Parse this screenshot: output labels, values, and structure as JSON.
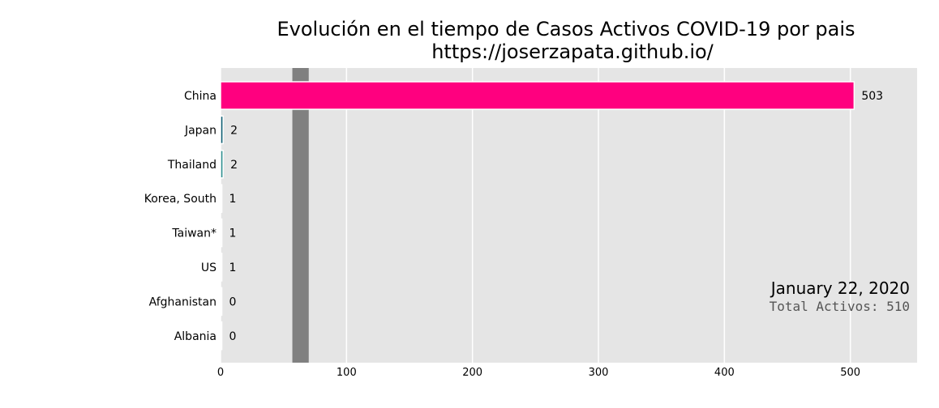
{
  "chart_data": {
    "type": "bar",
    "orientation": "horizontal",
    "title_line1": "Evolución en el tiempo de Casos Activos COVID-19 por pais",
    "title_line2": "https://joserzapata.github.io/",
    "categories": [
      "China",
      "Japan",
      "Thailand",
      "Korea, South",
      "Taiwan*",
      "US",
      "Afghanistan",
      "Albania"
    ],
    "values": [
      503,
      2,
      2,
      1,
      1,
      1,
      0,
      0
    ],
    "value_labels": [
      "503",
      "2",
      "2",
      "1",
      "1",
      "1",
      "0",
      "0"
    ],
    "bar_colors": [
      "#ff007f",
      "#0f5e73",
      "#2f8f8f",
      "#e6e6e6",
      "#e6e6e6",
      "#e6e6e6",
      "#e6e6e6",
      "#e6e6e6"
    ],
    "xlim": [
      0,
      553
    ],
    "xticks": [
      0,
      100,
      200,
      300,
      400,
      500
    ],
    "xtick_labels": [
      "0",
      "100",
      "200",
      "300",
      "400",
      "500"
    ],
    "grid": true,
    "background_color": "#e5e5e5",
    "band_range": [
      57,
      70
    ],
    "band_color": "#808080",
    "date": "January 22, 2020",
    "total": "Total Activos: 510"
  }
}
